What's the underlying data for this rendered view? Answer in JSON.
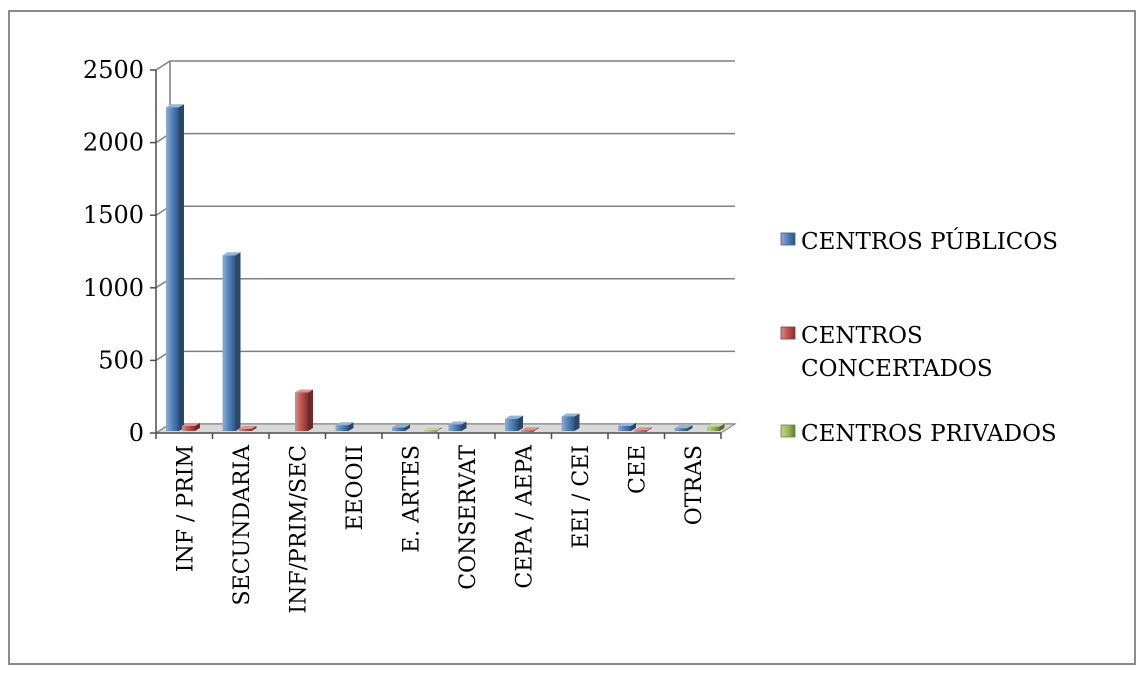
{
  "chart_data": {
    "type": "bar",
    "title": "",
    "xlabel": "",
    "ylabel": "",
    "ylim": [
      0,
      2500
    ],
    "yticks": [
      0,
      500,
      1000,
      1500,
      2000,
      2500
    ],
    "grid": true,
    "legend_position": "right",
    "categories": [
      "INF / PRIM",
      "SECUNDARIA",
      "INF/PRIM/SEC",
      "EEOOII",
      "E. ARTES",
      "CONSERVAT",
      "CEPA / AEPA",
      "EEI / CEI",
      "CEE",
      "OTRAS"
    ],
    "series": [
      {
        "name": "CENTROS PÚBLICOS",
        "color": "#4f81bd",
        "values": [
          2230,
          1210,
          0,
          40,
          25,
          45,
          85,
          100,
          35,
          20
        ]
      },
      {
        "name": "CENTROS CONCERTADOS",
        "color": "#c0504d",
        "values": [
          35,
          15,
          265,
          0,
          0,
          0,
          5,
          0,
          5,
          0
        ]
      },
      {
        "name": "CENTROS PRIVADOS",
        "color": "#9bbb59",
        "values": [
          0,
          0,
          0,
          0,
          5,
          0,
          0,
          0,
          0,
          30
        ]
      }
    ]
  }
}
